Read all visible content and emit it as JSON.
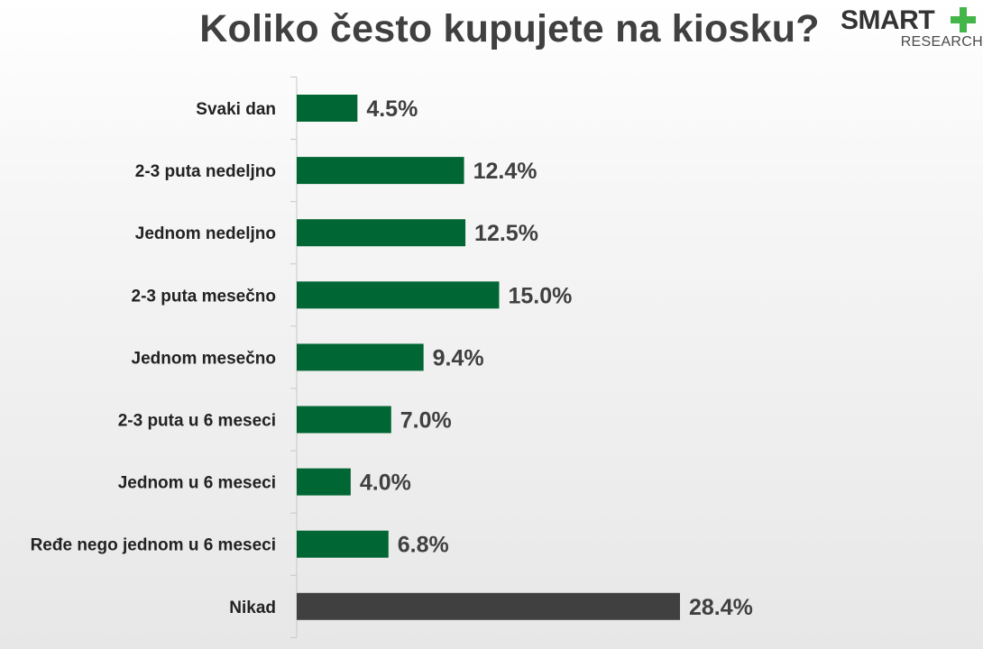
{
  "logo": {
    "word": "SMART",
    "sub": "RESEARCH",
    "accent_color": "#44b549"
  },
  "chart_data": {
    "type": "bar",
    "orientation": "horizontal",
    "title": "Koliko često kupujete na kiosku?",
    "categories": [
      "Svaki dan",
      "2-3 puta nedeljno",
      "Jednom nedeljno",
      "2-3 puta mesečno",
      "Jednom mesečno",
      "2-3 puta u 6 meseci",
      "Jednom u 6 meseci",
      "Ređe nego jednom u 6 meseci",
      "Nikad"
    ],
    "values": [
      4.5,
      12.4,
      12.5,
      15.0,
      9.4,
      7.0,
      4.0,
      6.8,
      28.4
    ],
    "value_labels": [
      "4.5%",
      "12.4%",
      "12.5%",
      "15.0%",
      "9.4%",
      "7.0%",
      "4.0%",
      "6.8%",
      "28.4%"
    ],
    "unit": "%",
    "colors": [
      "#006633",
      "#006633",
      "#006633",
      "#006633",
      "#006633",
      "#006633",
      "#006633",
      "#006633",
      "#404040"
    ],
    "xlim": [
      0,
      30
    ],
    "grid": false,
    "legend": "none"
  }
}
